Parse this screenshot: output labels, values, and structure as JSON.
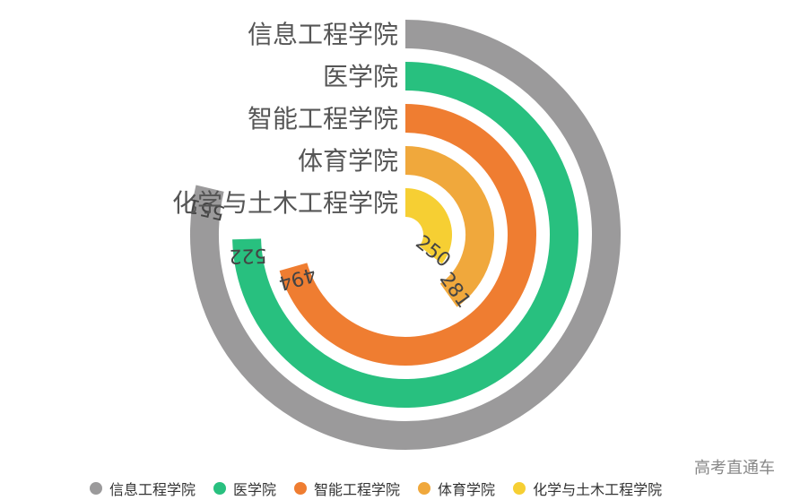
{
  "chart_data": {
    "type": "radial-bar",
    "title": "",
    "max": 700,
    "series": [
      {
        "name": "信息工程学院",
        "value": 551,
        "color": "#9b9a9b"
      },
      {
        "name": "医学院",
        "value": 522,
        "color": "#28c07f"
      },
      {
        "name": "智能工程学院",
        "value": 494,
        "color": "#ef7d31"
      },
      {
        "name": "体育学院",
        "value": 281,
        "color": "#f0a83c"
      },
      {
        "name": "化学与土木工程学院",
        "value": 250,
        "color": "#f6cf33"
      }
    ],
    "legend_position": "bottom"
  },
  "watermark": "高考直通车",
  "colors": {
    "label_text": "#555555",
    "value_text": "#444444"
  }
}
